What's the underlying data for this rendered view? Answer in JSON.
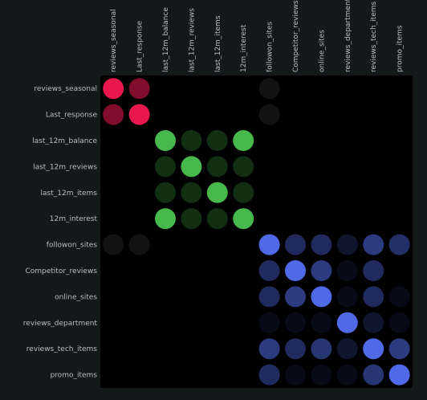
{
  "chart_data": {
    "type": "heatmap",
    "title": "",
    "labels": [
      "reviews_seasonal",
      "Last_response",
      "last_12m_balance",
      "last_12m_reviews",
      "last_12m_items",
      "12m_interest",
      "followon_sites",
      "Competitor_reviews",
      "online_sites",
      "reviews_department",
      "reviews_tech_items",
      "promo_items"
    ],
    "groups": [
      {
        "name": "",
        "members": [
          0,
          1
        ],
        "color": "#e8184f"
      },
      {
        "name": "",
        "members": [
          2,
          3,
          4,
          5
        ],
        "color": "#46b84c"
      },
      {
        "name": "",
        "members": [
          6,
          7,
          8,
          9,
          10,
          11
        ],
        "color": "#5069e6"
      }
    ],
    "neutral_color": "#787878",
    "matrix": [
      [
        1.0,
        0.55,
        0.0,
        0.0,
        0.0,
        0.0,
        0.15,
        0.0,
        0.0,
        0.0,
        0.0,
        0.0
      ],
      [
        0.55,
        1.0,
        0.0,
        0.0,
        0.0,
        0.0,
        0.15,
        0.0,
        0.0,
        0.0,
        0.0,
        0.0
      ],
      [
        0.0,
        0.0,
        1.0,
        0.25,
        0.25,
        1.0,
        0.0,
        0.0,
        0.0,
        0.0,
        0.0,
        0.0
      ],
      [
        0.0,
        0.0,
        0.25,
        1.0,
        0.25,
        0.25,
        0.0,
        0.0,
        0.0,
        0.0,
        0.0,
        0.0
      ],
      [
        0.0,
        0.0,
        0.25,
        0.25,
        1.0,
        0.25,
        0.0,
        0.0,
        0.0,
        0.0,
        0.0,
        0.0
      ],
      [
        0.0,
        0.0,
        1.0,
        0.25,
        0.25,
        1.0,
        0.0,
        0.0,
        0.0,
        0.0,
        0.0,
        0.0
      ],
      [
        0.15,
        0.15,
        0.0,
        0.0,
        0.0,
        0.0,
        1.0,
        0.4,
        0.4,
        0.2,
        0.55,
        0.45
      ],
      [
        0.0,
        0.0,
        0.0,
        0.0,
        0.0,
        0.0,
        0.4,
        1.0,
        0.55,
        0.1,
        0.4,
        0.0
      ],
      [
        0.0,
        0.0,
        0.0,
        0.0,
        0.0,
        0.0,
        0.4,
        0.55,
        1.0,
        0.1,
        0.4,
        0.1
      ],
      [
        0.0,
        0.0,
        0.0,
        0.0,
        0.0,
        0.0,
        0.1,
        0.1,
        0.1,
        1.0,
        0.2,
        0.1
      ],
      [
        0.0,
        0.0,
        0.0,
        0.0,
        0.0,
        0.0,
        0.55,
        0.4,
        0.5,
        0.2,
        1.0,
        0.55
      ],
      [
        0.0,
        0.0,
        0.0,
        0.0,
        0.0,
        0.0,
        0.4,
        0.1,
        0.1,
        0.1,
        0.5,
        1.0
      ]
    ],
    "grid": false,
    "legend": "none"
  }
}
